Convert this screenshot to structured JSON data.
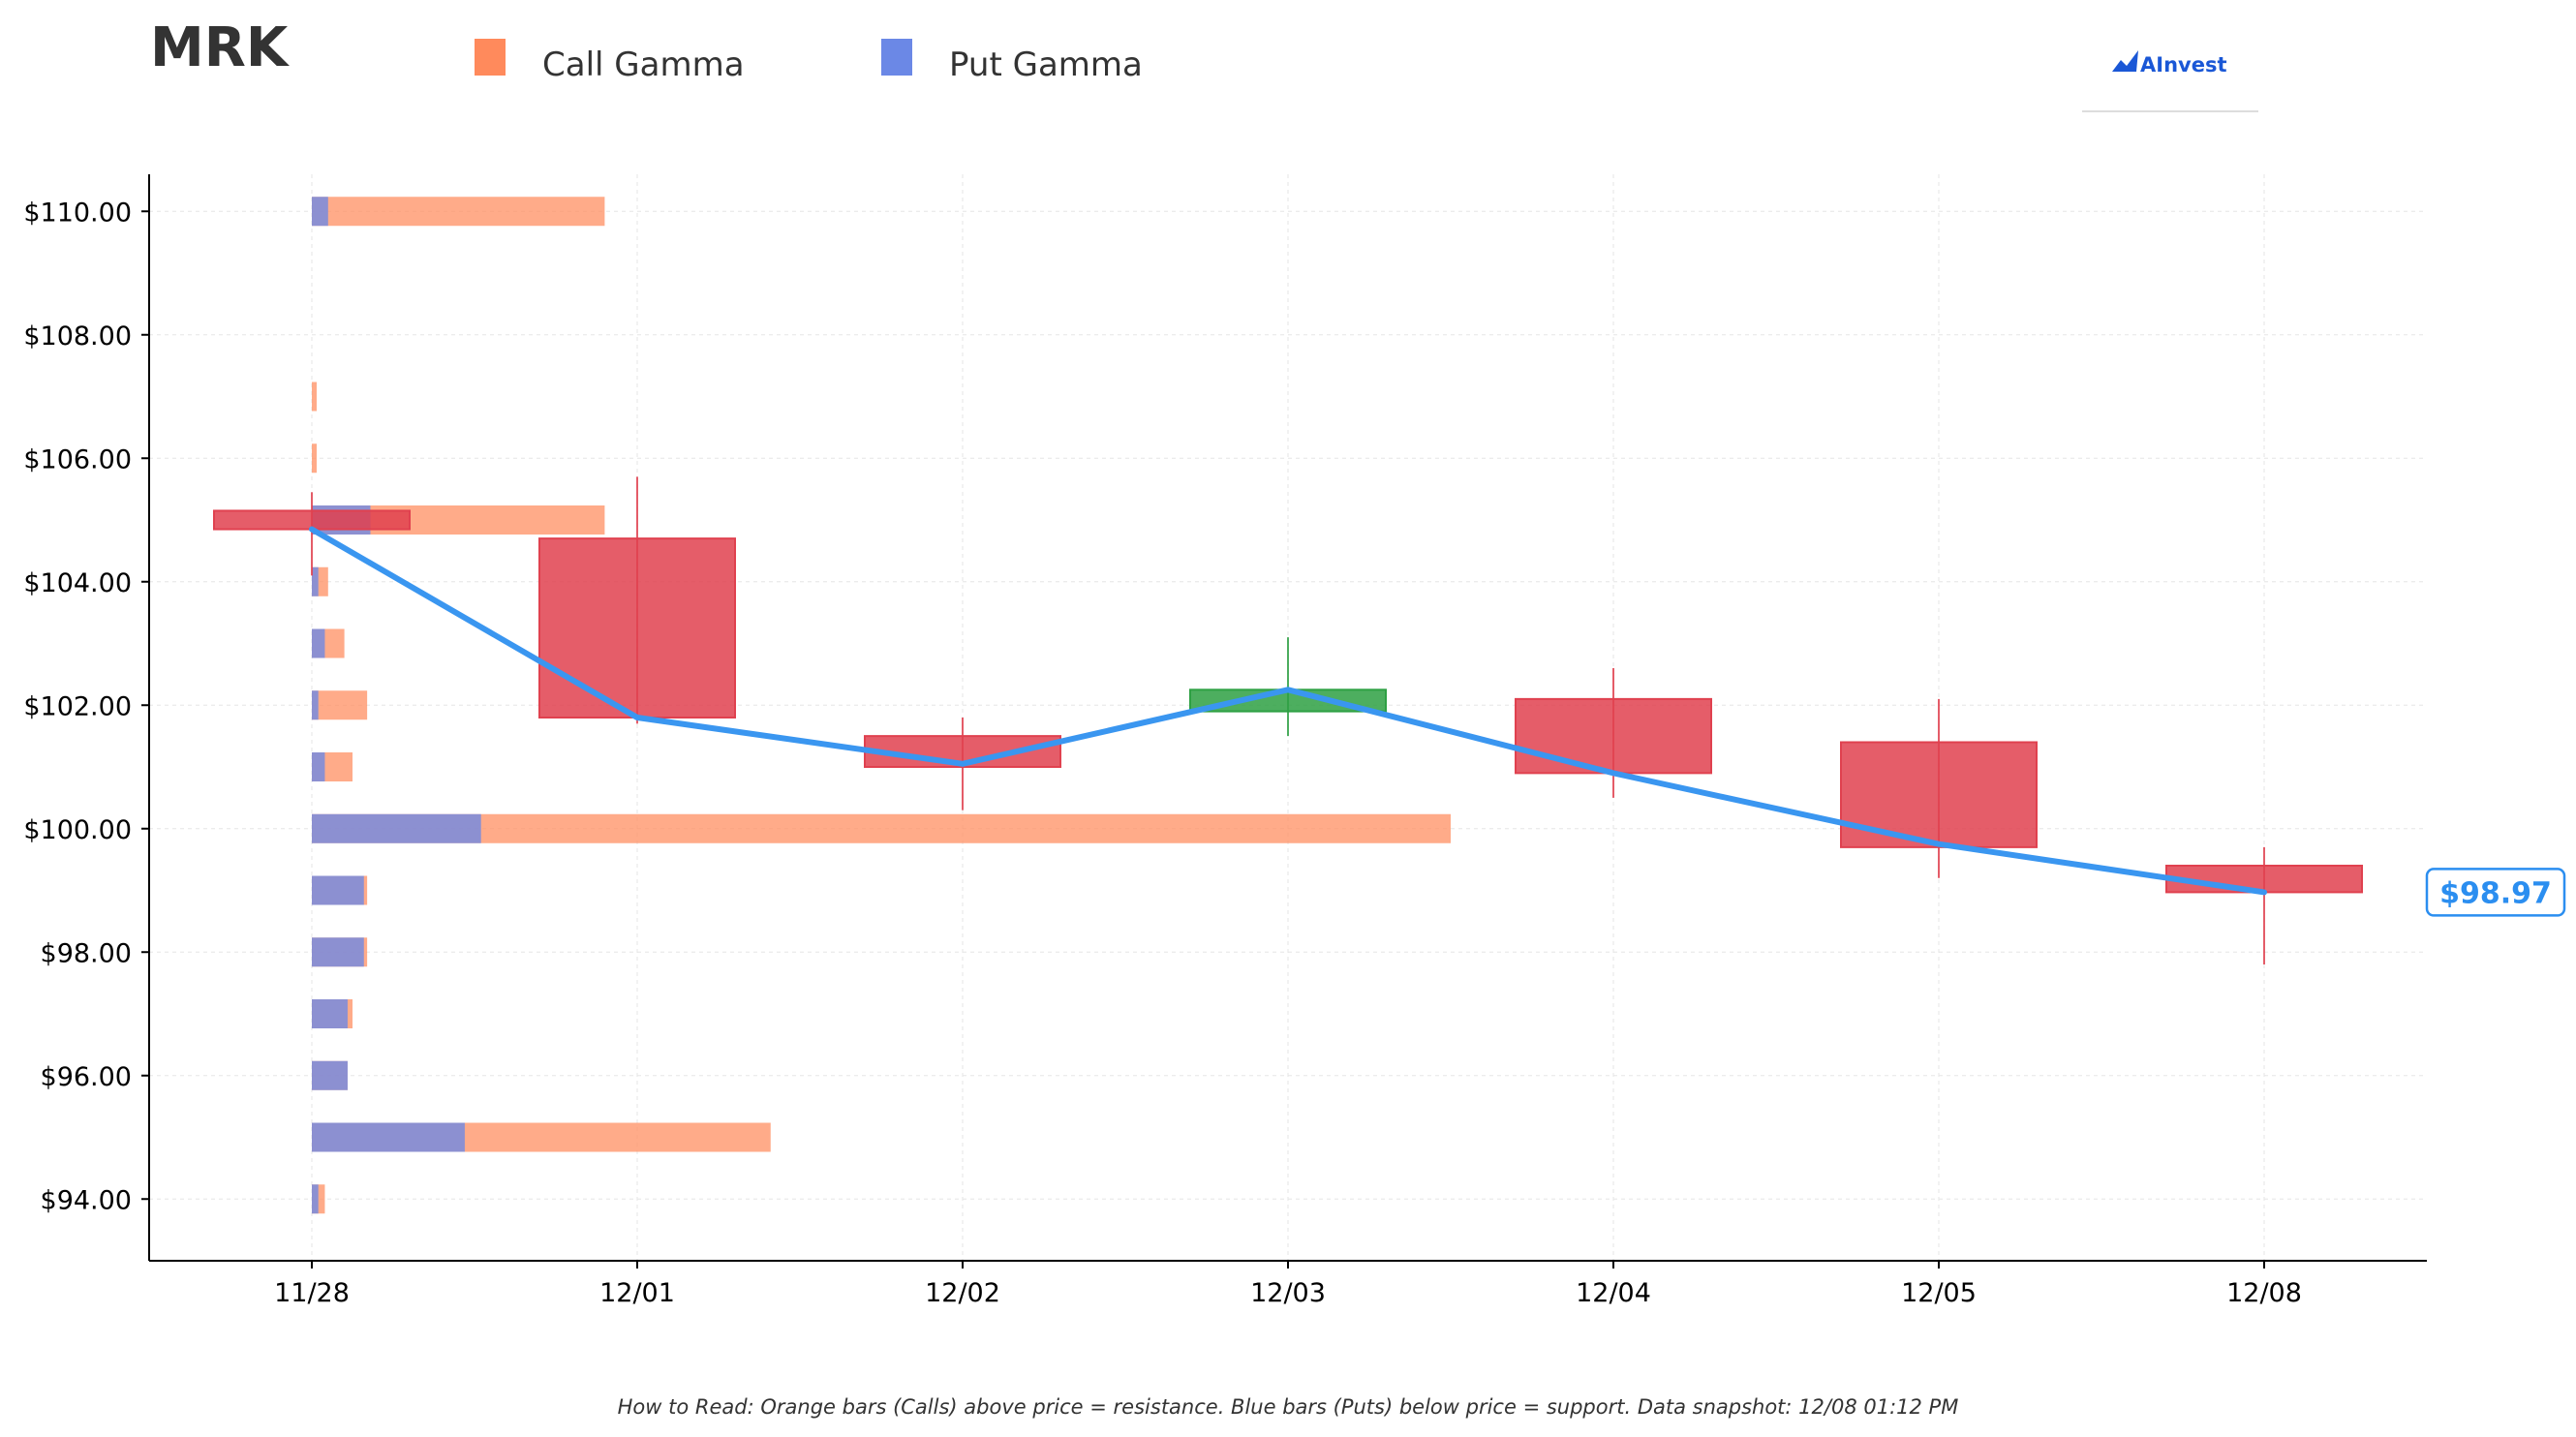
{
  "header": {
    "ticker": "MRK",
    "brand": "AInvest"
  },
  "legend": [
    {
      "label": "Call Gamma",
      "color": "#ff8a5c"
    },
    {
      "label": "Put Gamma",
      "color": "#6b88e6"
    }
  ],
  "footnote": "How to Read: Orange bars (Calls) above price = resistance. Blue bars (Puts) below price = support. Data snapshot: 12/08 01:12 PM",
  "current_price_label": "$98.97",
  "colors": {
    "call": "#ff8a5c",
    "put": "#6b88e6",
    "down_candle": "#e0414f",
    "up_candle": "#2ea043",
    "price_line": "#3a96f0"
  },
  "chart_data": {
    "type": "candlestick",
    "title": "MRK",
    "xlabel": "",
    "ylabel": "",
    "ylim": [
      93.0,
      110.6
    ],
    "grid": true,
    "legend_position": "top",
    "x_ticks": [
      "11/28",
      "12/01",
      "12/02",
      "12/03",
      "12/04",
      "12/05",
      "12/08"
    ],
    "y_ticks": [
      {
        "value": 94,
        "label": "$94.00"
      },
      {
        "value": 96,
        "label": "$96.00"
      },
      {
        "value": 98,
        "label": "$98.00"
      },
      {
        "value": 100,
        "label": "$100.00"
      },
      {
        "value": 102,
        "label": "$102.00"
      },
      {
        "value": 104,
        "label": "$104.00"
      },
      {
        "value": 106,
        "label": "$106.00"
      },
      {
        "value": 108,
        "label": "$108.00"
      },
      {
        "value": 110,
        "label": "$110.00"
      }
    ],
    "candles": [
      {
        "date": "11/28",
        "open": 104.85,
        "high": 105.45,
        "low": 104.1,
        "close": 105.15,
        "direction": "down"
      },
      {
        "date": "12/01",
        "open": 104.7,
        "high": 105.7,
        "low": 101.7,
        "close": 101.8,
        "direction": "down"
      },
      {
        "date": "12/02",
        "open": 101.5,
        "high": 101.8,
        "low": 100.3,
        "close": 101.0,
        "direction": "down"
      },
      {
        "date": "12/03",
        "open": 101.9,
        "high": 103.1,
        "low": 101.5,
        "close": 102.25,
        "direction": "up"
      },
      {
        "date": "12/04",
        "open": 102.1,
        "high": 102.6,
        "low": 100.5,
        "close": 100.9,
        "direction": "down"
      },
      {
        "date": "12/05",
        "open": 101.4,
        "high": 102.1,
        "low": 99.2,
        "close": 99.7,
        "direction": "down"
      },
      {
        "date": "12/08",
        "open": 99.4,
        "high": 99.7,
        "low": 97.8,
        "close": 98.97,
        "direction": "down"
      }
    ],
    "price_line": {
      "name": "",
      "values": [
        104.85,
        101.8,
        101.05,
        102.25,
        100.9,
        99.75,
        98.97
      ]
    },
    "gamma": {
      "unit": "trading days of x-axis",
      "levels": [
        {
          "strike": 110,
          "put": 0.05,
          "call_total": 0.9
        },
        {
          "strike": 107,
          "put": 0.0,
          "call_total": 0.015
        },
        {
          "strike": 106,
          "put": 0.0,
          "call_total": 0.015
        },
        {
          "strike": 105,
          "put": 0.18,
          "call_total": 0.9
        },
        {
          "strike": 104,
          "put": 0.02,
          "call_total": 0.05
        },
        {
          "strike": 103,
          "put": 0.04,
          "call_total": 0.1
        },
        {
          "strike": 102,
          "put": 0.02,
          "call_total": 0.17
        },
        {
          "strike": 101,
          "put": 0.04,
          "call_total": 0.125
        },
        {
          "strike": 100,
          "put": 0.52,
          "call_total": 3.5
        },
        {
          "strike": 99,
          "put": 0.16,
          "call_total": 0.17
        },
        {
          "strike": 98,
          "put": 0.16,
          "call_total": 0.17
        },
        {
          "strike": 97,
          "put": 0.11,
          "call_total": 0.125
        },
        {
          "strike": 96,
          "put": 0.11,
          "call_total": 0.11
        },
        {
          "strike": 95,
          "put": 0.47,
          "call_total": 1.41
        },
        {
          "strike": 94,
          "put": 0.02,
          "call_total": 0.04
        }
      ]
    }
  }
}
